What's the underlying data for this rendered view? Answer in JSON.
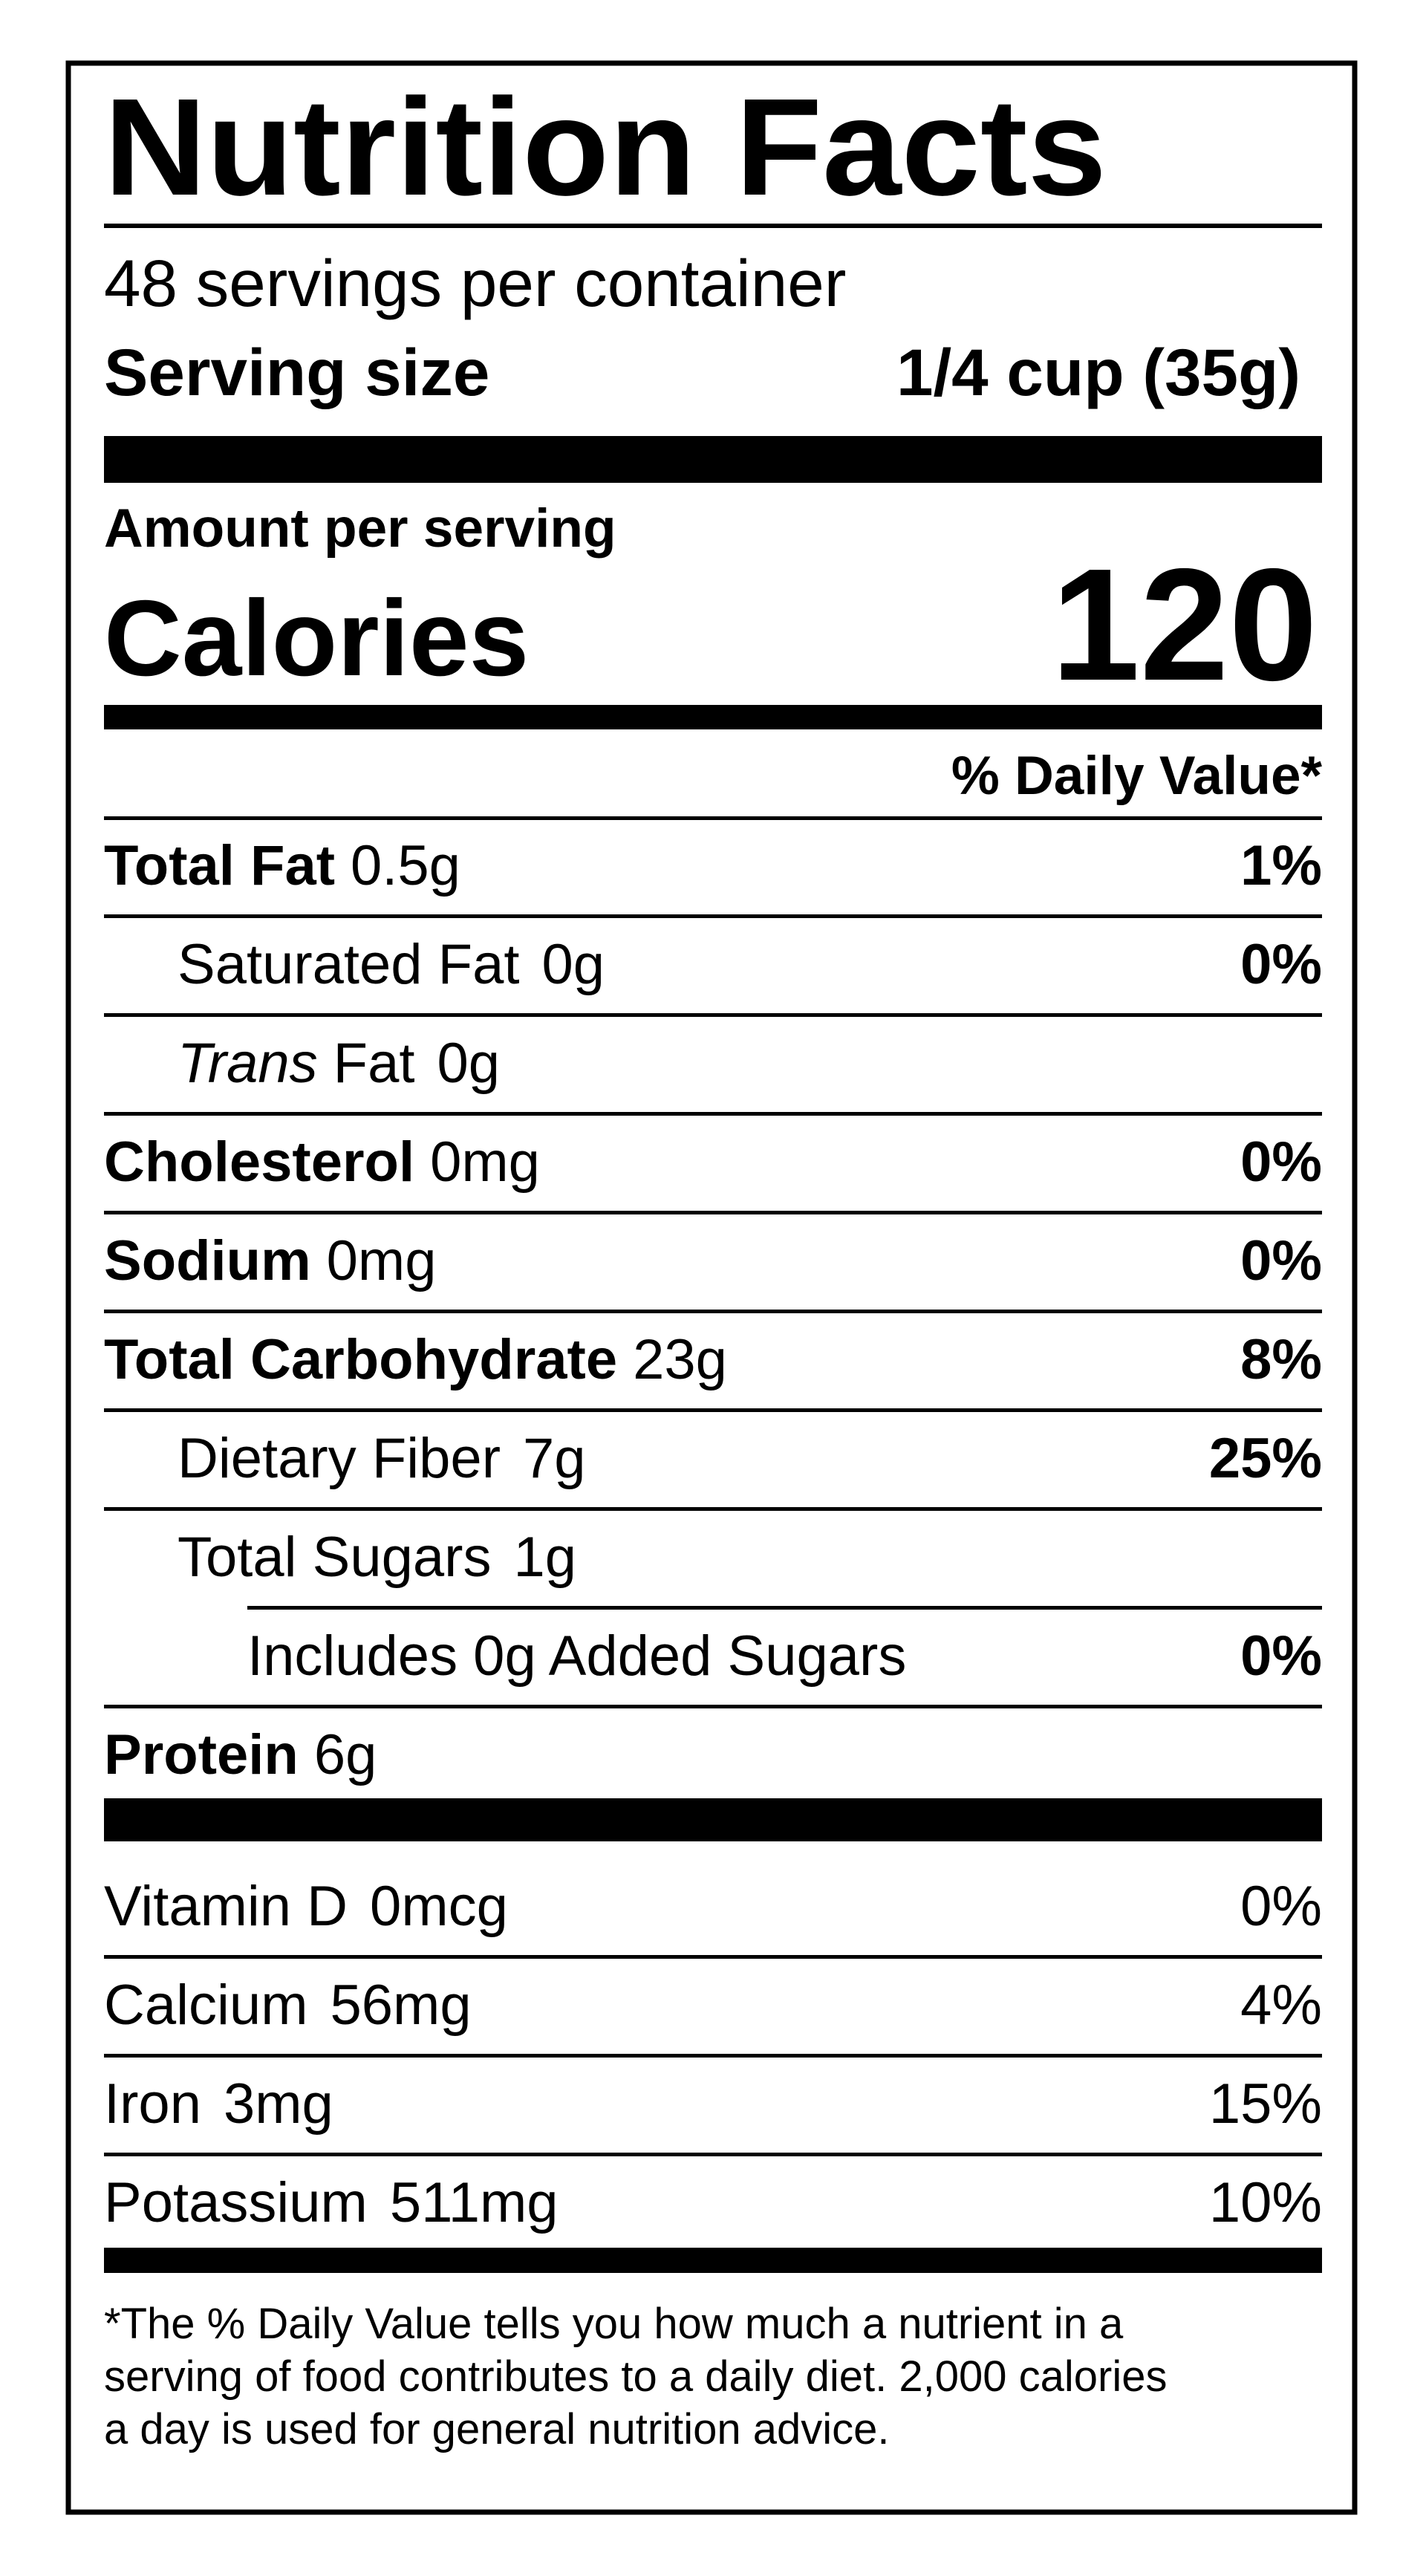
{
  "header": {
    "title": "Nutrition Facts",
    "servings": "48 servings per container",
    "serving_size_label": "Serving size",
    "serving_size_value": "1/4 cup (35g)"
  },
  "calories": {
    "heading": "Amount per serving",
    "label": "Calories",
    "value": "120"
  },
  "daily_value_heading": "% Daily Value*",
  "nutrients": [
    {
      "name": "Total Fat",
      "amount": "0.5g",
      "dv": "1%",
      "sub": [
        {
          "name": "Saturated Fat",
          "amount": "0g",
          "dv": "0%"
        },
        {
          "italic": "Trans",
          "name": "Fat",
          "amount": "0g"
        }
      ]
    },
    {
      "name": "Cholesterol",
      "amount": "0mg",
      "dv": "0%"
    },
    {
      "name": "Sodium",
      "amount": "0mg",
      "dv": "0%"
    },
    {
      "name": "Total Carbohydrate",
      "amount": "23g",
      "dv": "8%",
      "sub": [
        {
          "name": "Dietary Fiber",
          "amount": "7g",
          "dv": "25%"
        },
        {
          "name": "Total Sugars",
          "amount": "1g",
          "sub": [
            {
              "name": "Includes 0g Added Sugars",
              "dv": "0%"
            }
          ]
        }
      ]
    },
    {
      "name": "Protein",
      "amount": "6g"
    }
  ],
  "vitamins": [
    {
      "name": "Vitamin D",
      "amount": "0mcg",
      "dv": "0%"
    },
    {
      "name": "Calcium",
      "amount": "56mg",
      "dv": "4%"
    },
    {
      "name": "Iron",
      "amount": "3mg",
      "dv": "15%"
    },
    {
      "name": "Potassium",
      "amount": "511mg",
      "dv": "10%"
    }
  ],
  "footnote": [
    "*The % Daily Value tells you how much a nutrient in a",
    "serving of food contributes to a daily diet. 2,000 calories",
    "a day is used for general nutrition advice."
  ]
}
